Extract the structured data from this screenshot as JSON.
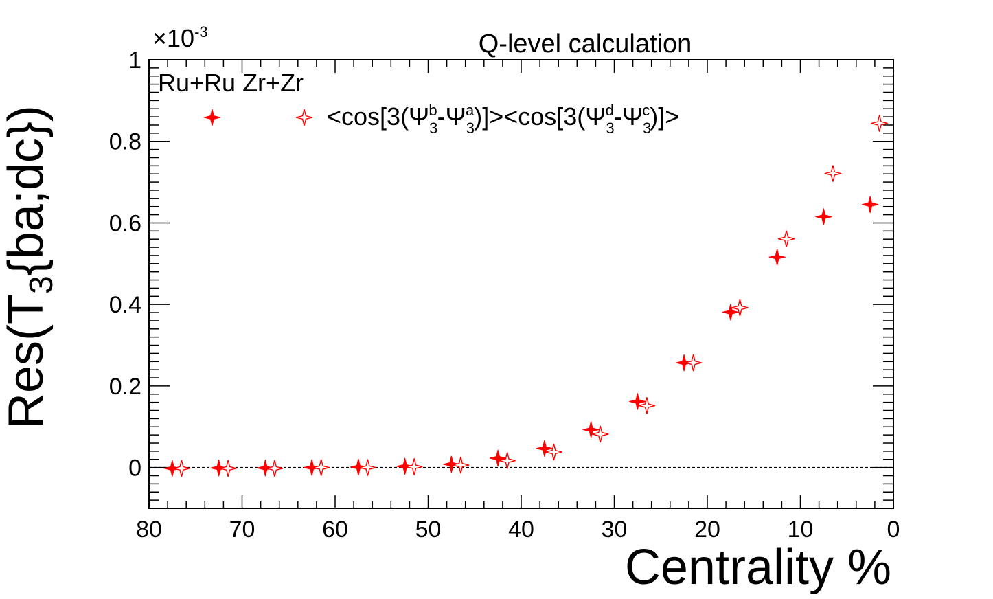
{
  "chart_data": {
    "type": "scatter",
    "title": "Q-level calculation",
    "exponent_label": "×10",
    "exponent_power": "-3",
    "xlabel": "Centrality %",
    "ylabel_main": "Res(T",
    "ylabel_sub": "3",
    "ylabel_rest": "{ba;dc})",
    "annotation": "Ru+Ru Zr+Zr",
    "xlim": [
      80,
      0
    ],
    "ylim": [
      -0.1,
      1.0
    ],
    "x_ticks": [
      80,
      70,
      60,
      50,
      40,
      30,
      20,
      10,
      0
    ],
    "x_tick_labels": [
      "80",
      "70",
      "60",
      "50",
      "40",
      "30",
      "20",
      "10",
      "0"
    ],
    "y_ticks": [
      0,
      0.2,
      0.4,
      0.6,
      0.8,
      1.0
    ],
    "y_tick_labels": [
      "0",
      "0.2",
      "0.4",
      "0.6",
      "0.8",
      "1"
    ],
    "reference_line_y": 0,
    "legend": {
      "text_parts": [
        "<cos[3(Ψ",
        "3",
        "b",
        "-Ψ",
        "3",
        "a",
        ")]><cos[3(Ψ",
        "3",
        "d",
        "-Ψ",
        "3",
        "c",
        ")]>"
      ]
    },
    "series": [
      {
        "name": "Ru+Ru",
        "marker": "filled-star",
        "color": "#ff0000",
        "x": [
          77.5,
          72.5,
          67.5,
          62.5,
          57.5,
          52.5,
          47.5,
          42.5,
          37.5,
          32.5,
          27.5,
          22.5,
          17.5,
          12.5,
          7.5,
          2.5
        ],
        "y": [
          -0.002,
          -0.001,
          -0.001,
          0.0,
          0.001,
          0.003,
          0.008,
          0.023,
          0.047,
          0.093,
          0.162,
          0.257,
          0.381,
          0.516,
          0.615,
          0.645
        ]
      },
      {
        "name": "Zr+Zr",
        "marker": "open-star",
        "color": "#ff0000",
        "x": [
          76.5,
          71.5,
          66.5,
          61.5,
          56.5,
          51.5,
          46.5,
          41.5,
          36.5,
          31.5,
          26.5,
          21.5,
          16.5,
          11.5,
          6.5,
          1.5
        ],
        "y": [
          -0.002,
          -0.002,
          -0.002,
          0.0,
          0.0,
          0.002,
          0.006,
          0.017,
          0.038,
          0.082,
          0.152,
          0.257,
          0.392,
          0.561,
          0.721,
          0.844
        ]
      }
    ]
  }
}
